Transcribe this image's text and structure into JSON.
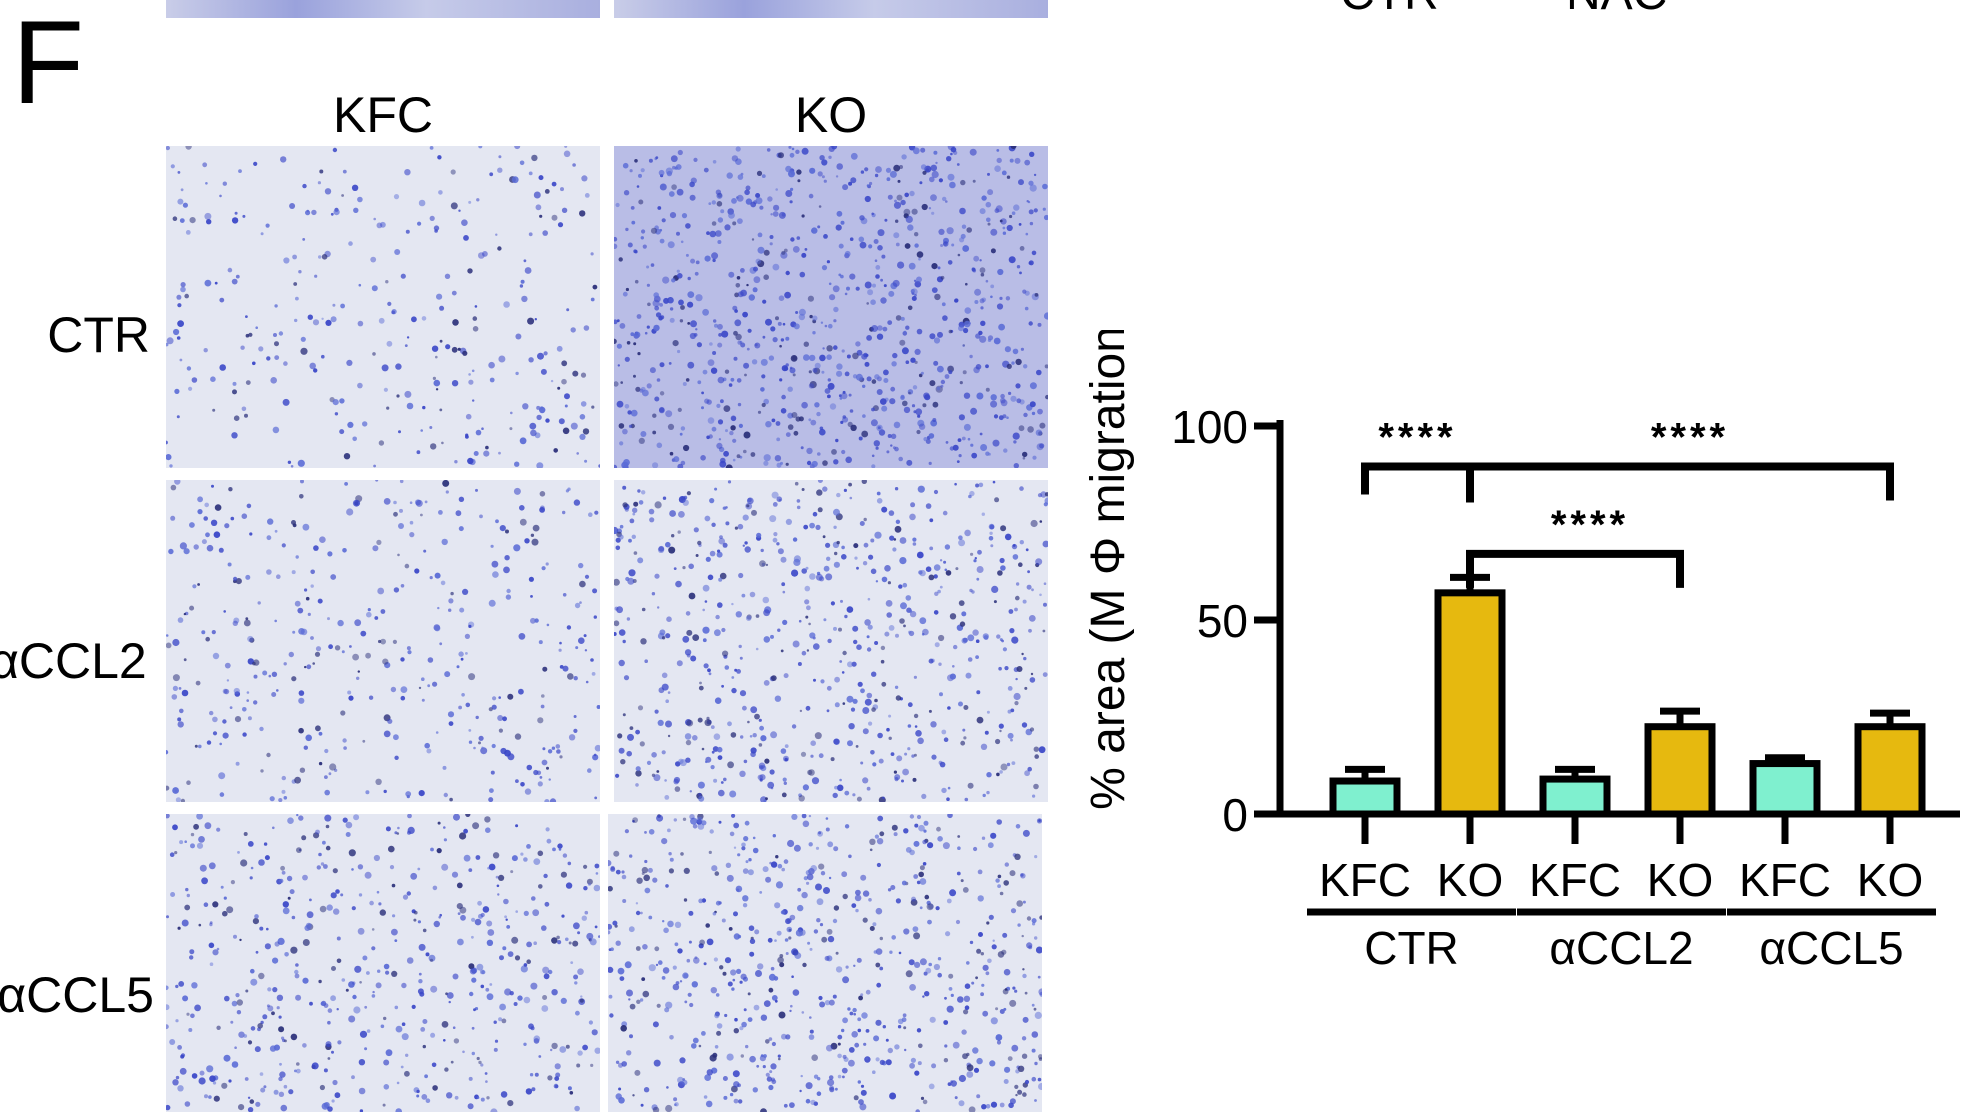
{
  "panel": {
    "letter": "F"
  },
  "top_strip": {
    "labels": [
      "CTR",
      "NAC"
    ]
  },
  "micrographs": {
    "columns": [
      "KFC",
      "KO"
    ],
    "rows": [
      "CTR",
      "αCCL2",
      "αCCL5"
    ],
    "stain_color": "#3a47c8"
  },
  "chart_data": {
    "type": "bar",
    "ylabel": "% area (M Φ migration)",
    "ylim": [
      0,
      100
    ],
    "yticks": [
      0,
      50,
      100
    ],
    "categories": [
      "KFC",
      "KO",
      "KFC",
      "KO",
      "KFC",
      "KO"
    ],
    "groups": [
      "CTR",
      "αCCL2",
      "αCCL5"
    ],
    "values": [
      8.5,
      57,
      9,
      22.5,
      13,
      22.5
    ],
    "errors": [
      3,
      4,
      2.5,
      4,
      1.5,
      3.5
    ],
    "colors": {
      "KFC": "#7ff0cf",
      "KO": "#e6b90f"
    },
    "significance": [
      {
        "label": "****",
        "from": 0,
        "to": 1
      },
      {
        "label": "****",
        "from": 1,
        "to": 3
      },
      {
        "label": "****",
        "from": 1,
        "to": 5
      }
    ]
  }
}
